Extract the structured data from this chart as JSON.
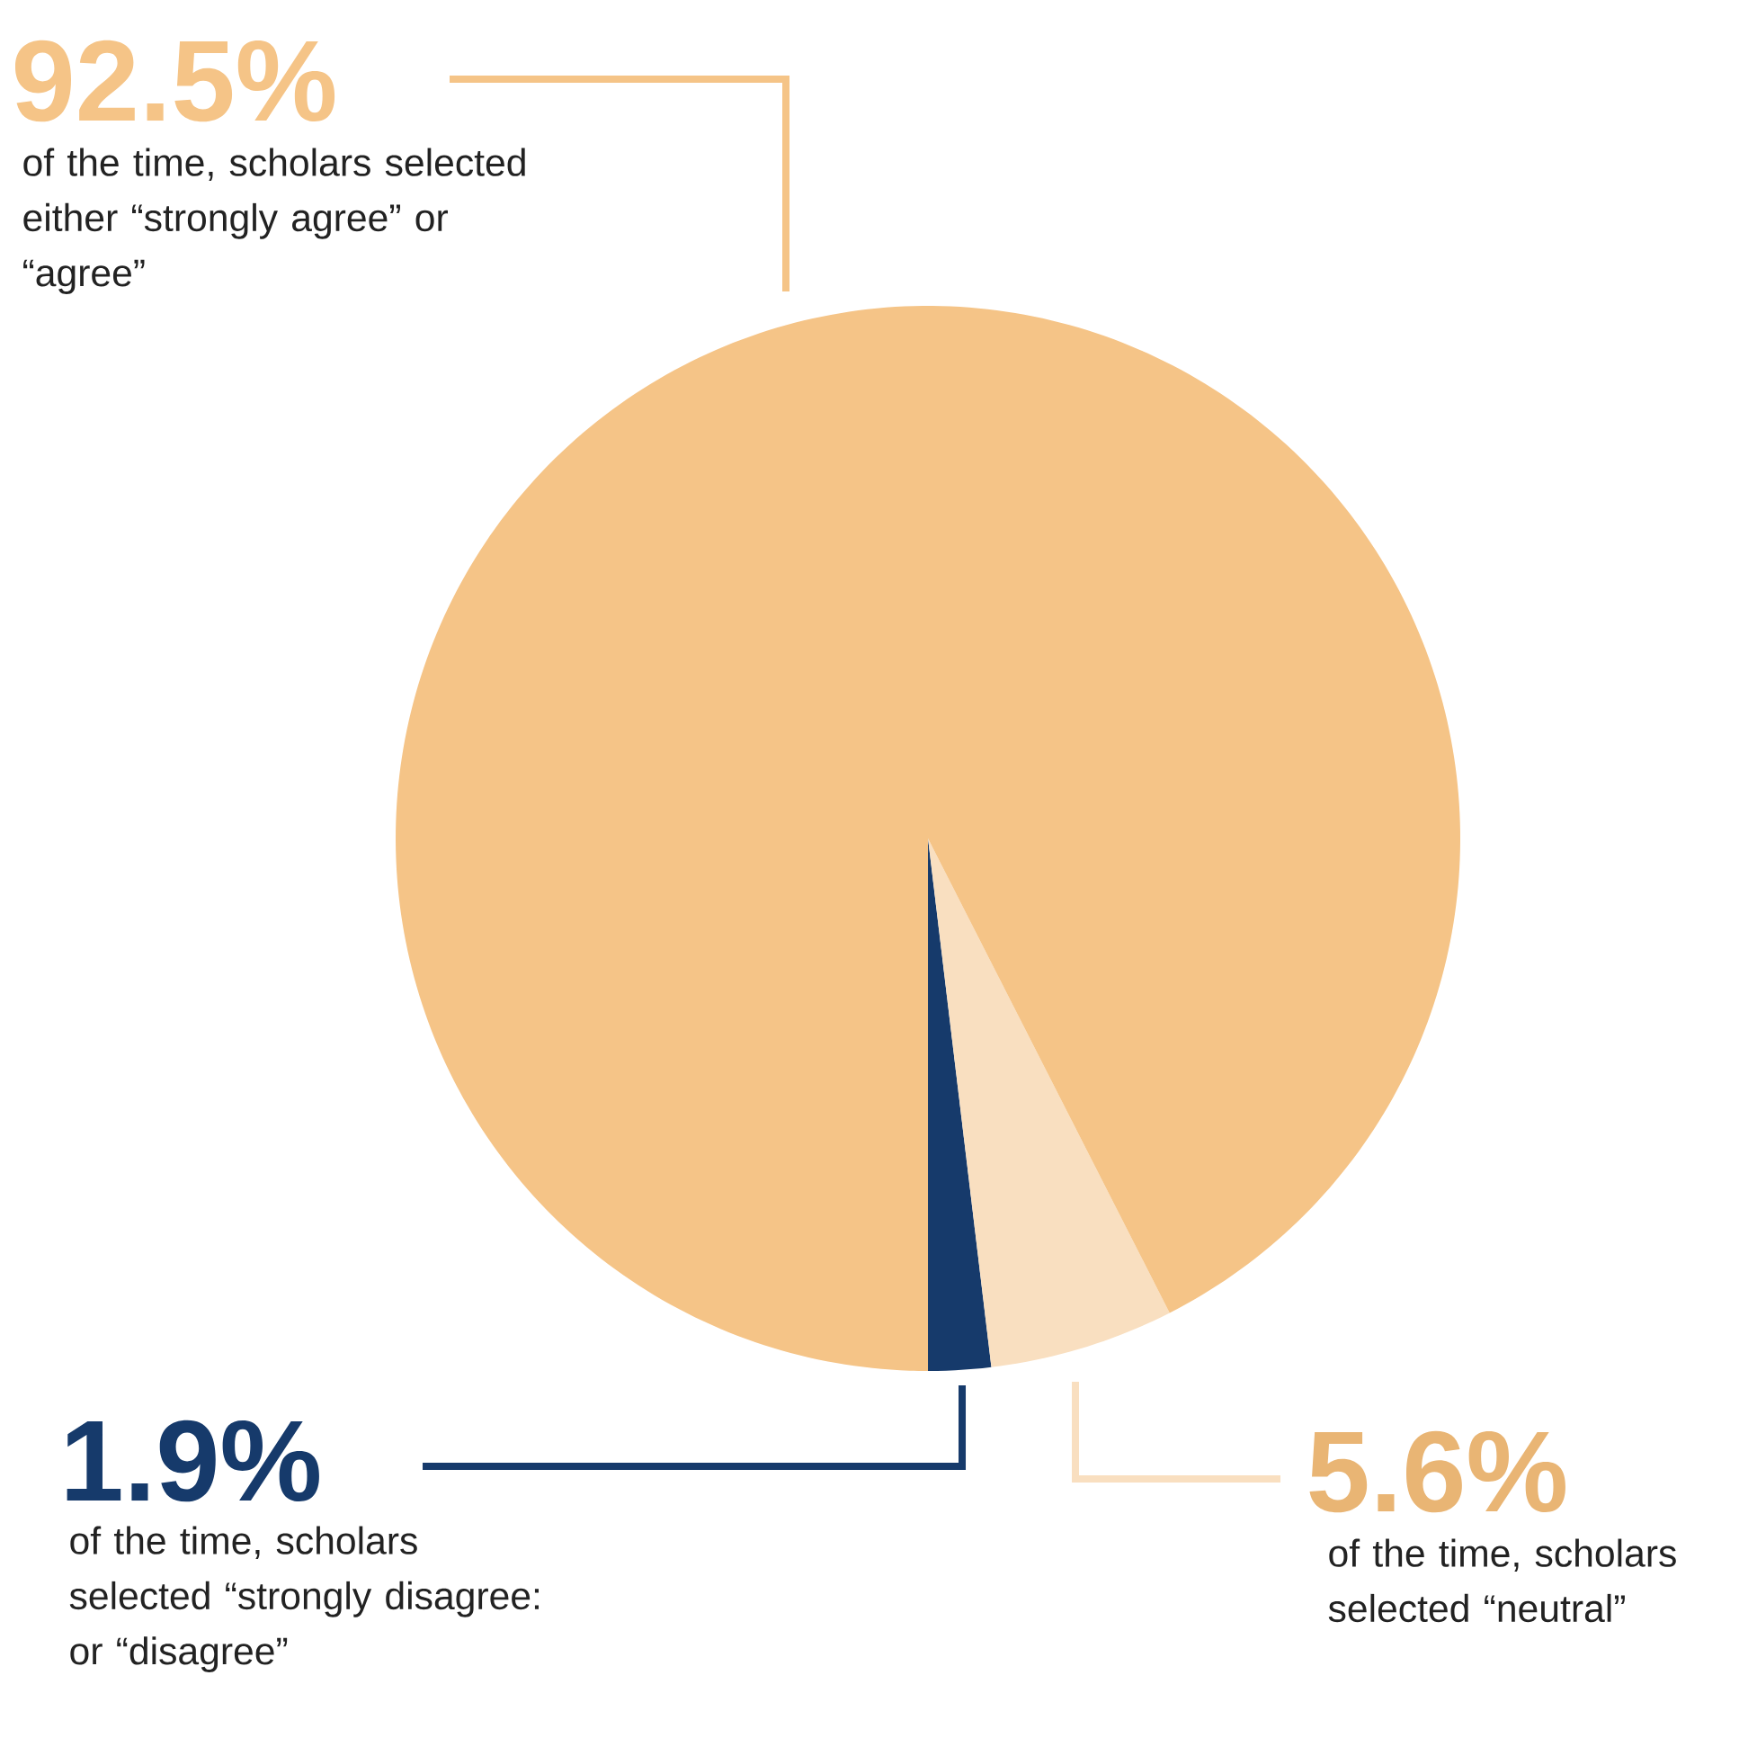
{
  "chart_data": {
    "type": "pie",
    "categories": [
      "of the time, scholars selected “strongly disagree: or “disagree”",
      "of the time, scholars selected “neutral”",
      "of the time, scholars selected either “strongly agree” or “agree”"
    ],
    "values": [
      1.9,
      5.6,
      92.5
    ],
    "value_labels": [
      "1.9%",
      "5.6%",
      "92.5%"
    ],
    "colors": [
      "#163a6b",
      "#f9dfc0",
      "#f5c487"
    ],
    "legend": false
  }
}
